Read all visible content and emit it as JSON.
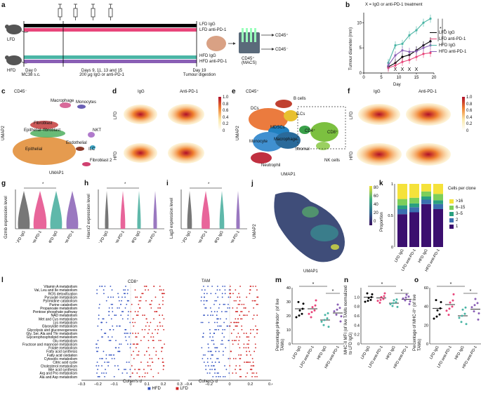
{
  "panel_labels": [
    "a",
    "b",
    "c",
    "d",
    "e",
    "f",
    "g",
    "h",
    "i",
    "j",
    "k",
    "l",
    "m",
    "n",
    "o"
  ],
  "a": {
    "mice": [
      "LFD",
      "HFD"
    ],
    "bars": [
      "LFD IgG",
      "LFD anti-PD-1",
      "HFD IgG",
      "HFD anti-PD-1"
    ],
    "timeline": [
      {
        "line1": "Day 0",
        "line2": "MC38 s.c."
      },
      {
        "line1": "Days 9, 11, 13 and 15",
        "line2": "200 μg IgG or anti-PD-1"
      },
      {
        "line1": "Day 19",
        "line2": "Tumour digestion"
      }
    ],
    "macs_label1": "CD45⁺",
    "macs_label2": "(MACS)",
    "out_pos": "CD45⁺",
    "out_neg": "CD45⁻",
    "colors": {
      "lfd_igg": "#000000",
      "lfd_anti": "#e8457a",
      "hfd_igg": "#4ab5a5",
      "hfd_anti": "#8a5fb5"
    }
  },
  "b": {
    "note": "X = IgG or anti-PD-1 treatment",
    "legend": [
      "LFD IgG",
      "LFD anti-PD-1",
      "HFD IgG",
      "HFD anti-PD-1"
    ],
    "sig": [
      "*",
      "*"
    ],
    "chart_data": {
      "type": "line",
      "xlabel": "Day",
      "ylabel": "Tumour diameter (mm)",
      "xlim": [
        0,
        20
      ],
      "ylim": [
        0,
        12
      ],
      "xticks": [
        0,
        5,
        10,
        15,
        20
      ],
      "yticks": [
        0,
        5,
        10
      ],
      "treatment_days": [
        9,
        11,
        13,
        15
      ],
      "x": [
        7,
        9,
        11,
        13,
        15,
        17,
        19
      ],
      "series": [
        {
          "name": "LFD IgG",
          "values": [
            1.2,
            2.0,
            3.2,
            3.6,
            4.5,
            5.5,
            6.3
          ]
        },
        {
          "name": "LFD anti-PD-1",
          "values": [
            1.0,
            1.5,
            2.2,
            2.6,
            3.2,
            3.8,
            4.0
          ]
        },
        {
          "name": "HFD IgG",
          "values": [
            2.0,
            5.5,
            5.8,
            7.5,
            8.5,
            10.0,
            10.8
          ]
        },
        {
          "name": "HFD anti-PD-1",
          "values": [
            1.5,
            3.5,
            4.5,
            4.2,
            4.3,
            5.0,
            5.5
          ]
        }
      ]
    }
  },
  "c": {
    "title": "CD45⁻",
    "ylabel": "UMAP2",
    "xlabel": "UMAP1",
    "clusters": [
      "Macrophage",
      "Monocytes",
      "Fibroblast",
      "Epithelial–fibroblast",
      "Epithelial",
      "NKT",
      "Endothelial",
      "ILC",
      "Fibroblast 2"
    ]
  },
  "d": {
    "cols": [
      "IgG",
      "Anti-PD-1"
    ],
    "rows": [
      "LFD",
      "HFD"
    ],
    "scale": [
      "1.0",
      "0.8",
      "0.6",
      "0.4",
      "0.2",
      "0"
    ]
  },
  "e": {
    "title": "CD45⁺",
    "ylabel": "UMAP2",
    "xlabel": "UMAP1",
    "clusters": [
      "B cells",
      "DCs",
      "ILCs",
      "MDSCs",
      "CD4⁺",
      "CD8⁺",
      "Monocyte",
      "Macrophage",
      "Stromal",
      "Neutrophil",
      "NK cells"
    ]
  },
  "f": {
    "cols": [
      "IgG",
      "Anti-PD-1"
    ],
    "rows": [
      "LFD",
      "HFD"
    ],
    "scale": [
      "1.0",
      "0.8",
      "0.6",
      "0.4",
      "0.2",
      "0"
    ]
  },
  "g": {
    "ylabel": "Gzmb expression level",
    "groups": [
      "LFD IgG",
      "LFD anti-PD-1",
      "HFD IgG",
      "HFD anti-PD-1"
    ],
    "sig": "*"
  },
  "h": {
    "ylabel": "Havcr2 expression level",
    "groups": [
      "LFD IgG",
      "LFD anti-PD-1",
      "HFD IgG",
      "HFD anti-PD-1"
    ],
    "sig": "*"
  },
  "i": {
    "ylabel": "Lag3 expression level",
    "groups": [
      "LFD IgG",
      "LFD anti-PD-1",
      "HFD IgG",
      "HFD anti-PD-1"
    ],
    "sig": "*"
  },
  "j": {
    "ylabel": "UMAP2",
    "xlabel": "UMAP1",
    "scale": [
      "80",
      "60",
      "40",
      "20",
      "0"
    ]
  },
  "k": {
    "ylabel": "Proportion",
    "legend_title": "Cells per clone",
    "legend": [
      ">16",
      "6–15",
      "3–5",
      "2",
      "1"
    ],
    "chart_data": {
      "type": "bar",
      "categories": [
        "LFD IgG",
        "LFD anti-PD-1",
        "HFD IgG",
        "HFD anti-PD-1"
      ],
      "yticks": [
        0,
        0.5,
        1.0
      ],
      "series": [
        {
          "name": "1",
          "values": [
            0.52,
            0.55,
            0.68,
            0.6
          ]
        },
        {
          "name": "2",
          "values": [
            0.08,
            0.08,
            0.07,
            0.08
          ]
        },
        {
          "name": "3–5",
          "values": [
            0.06,
            0.06,
            0.05,
            0.06
          ]
        },
        {
          "name": "6–15",
          "values": [
            0.1,
            0.09,
            0.08,
            0.1
          ]
        },
        {
          "name": ">16",
          "values": [
            0.24,
            0.22,
            0.12,
            0.16
          ]
        }
      ]
    }
  },
  "l": {
    "titles": [
      "CD8⁺",
      "TAM"
    ],
    "xlabel": "Cohen's d",
    "pathways": [
      "Vitamin A metabolism",
      "Val, Leu and Ile metabolism",
      "ROS detoxification",
      "Pyruvate metabolism",
      "Pyrimidine catabolism",
      "Purine catabolism",
      "Propanoate metabolism",
      "Pentose phosphate pathway",
      "NAD metabolism",
      "Met and Cys metabolism",
      "Lys metabolism",
      "Glyoxylate metabolism",
      "Glycolysis and gluconeogenesis",
      "Gly, Ser, Ala and Thr metabolism",
      "Glycerophospholipid metabolism",
      "Glu metabolism",
      "Fructose and mannose metabolism",
      "Folate metabolism",
      "Fatty acid synthesis",
      "Fatty acid oxidation",
      "Cytosolic metabolism",
      "Citric acid cycle",
      "Cholesterol metabolism",
      "Bile acid synthesis",
      "Arg and Pro metabolism",
      "Ala and Asp metabolism"
    ],
    "xticks_left": [
      "−0.3",
      "−0.2",
      "−0.1",
      "0",
      "0.1",
      "0.2",
      "0.3"
    ],
    "xticks_right": [
      "−0.4",
      "−0.2",
      "0",
      "0.2",
      "0.4"
    ],
    "legend": [
      "HFD",
      "LFD"
    ]
  },
  "m": {
    "ylabel": "Percentage pHrodo⁺ (of live TAMs)",
    "groups": [
      "LFD IgG",
      "LFD anti-PD-1",
      "HFD IgG",
      "HFD anti-PD-1"
    ],
    "yticks": [
      "0",
      "10",
      "20",
      "30",
      "40"
    ],
    "sig": [
      "*",
      "*"
    ],
    "chart_data": {
      "type": "bar",
      "categories": [
        "LFD IgG",
        "LFD anti-PD-1",
        "HFD IgG",
        "HFD anti-PD-1"
      ],
      "values": [
        25,
        25,
        17,
        22
      ],
      "ylim": [
        0,
        40
      ]
    }
  },
  "n": {
    "ylabel": "MHC-II MFI (of live TAMs normalized to LFD IgG)",
    "groups": [
      "LFD IgG",
      "LFD anti-PD-1",
      "HFD IgG",
      "HFD anti-PD-1"
    ],
    "yticks": [
      "0",
      "0.2",
      "0.4",
      "0.6",
      "0.8",
      "1.0"
    ],
    "sig": [
      "*",
      "*"
    ],
    "chart_data": {
      "type": "bar",
      "categories": [
        "LFD IgG",
        "LFD anti-PD-1",
        "HFD IgG",
        "HFD anti-PD-1"
      ],
      "values": [
        1.0,
        0.98,
        0.87,
        0.95
      ],
      "ylim": [
        0,
        1.2
      ]
    }
  },
  "o": {
    "ylabel": "Percentage of MHC-II⁺ (of live TAMs)",
    "groups": [
      "LFD IgG",
      "LFD anti-PD-1",
      "HFD IgG",
      "HFD anti-PD-1"
    ],
    "yticks": [
      "0",
      "20",
      "40",
      "60"
    ],
    "sig": [
      "*",
      "*"
    ],
    "chart_data": {
      "type": "bar",
      "categories": [
        "LFD IgG",
        "LFD anti-PD-1",
        "HFD IgG",
        "HFD anti-PD-1"
      ],
      "values": [
        38,
        42,
        30,
        37
      ],
      "ylim": [
        0,
        60
      ]
    }
  }
}
